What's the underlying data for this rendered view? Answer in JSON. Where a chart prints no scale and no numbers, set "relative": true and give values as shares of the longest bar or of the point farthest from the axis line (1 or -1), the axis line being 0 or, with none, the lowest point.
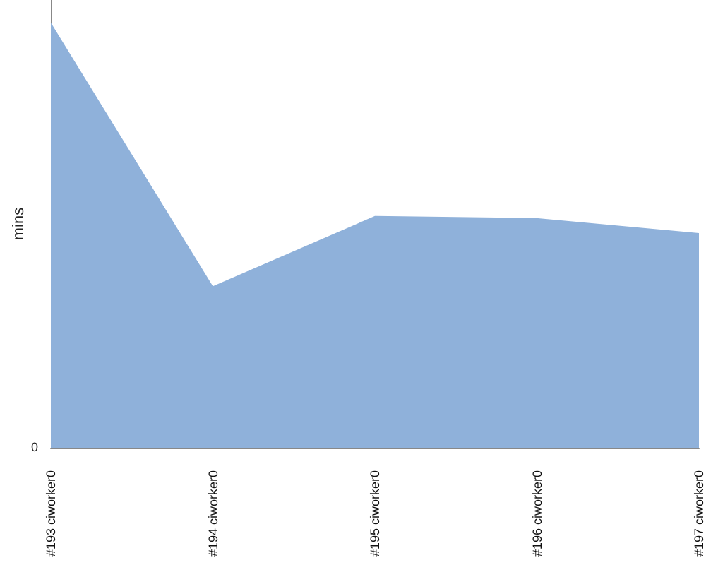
{
  "chart_data": {
    "type": "area",
    "ylabel": "mins",
    "relative": true,
    "annotations": [
      "0"
    ],
    "categories": [
      "#193 ciworker0",
      "#194 ciworker0",
      "#195 ciworker0",
      "#196 ciworker0",
      "#197 ciworker0"
    ],
    "series": [
      {
        "color": "#8fb1da",
        "values": [
          1,
          0.38,
          0.545,
          0.54,
          0.505
        ]
      }
    ],
    "grid": false
  }
}
